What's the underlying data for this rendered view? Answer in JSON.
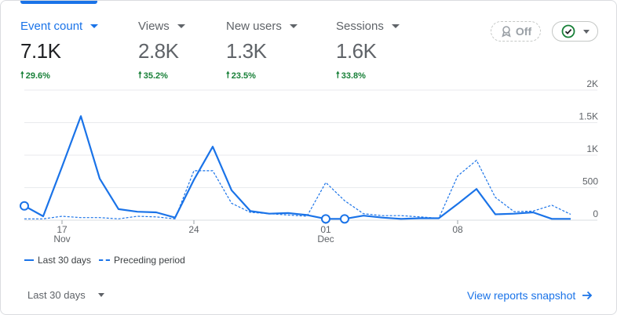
{
  "metrics": [
    {
      "label": "Event count",
      "value": "7.1K",
      "delta": "29.6%"
    },
    {
      "label": "Views",
      "value": "2.8K",
      "delta": "35.2%"
    },
    {
      "label": "New users",
      "value": "1.3K",
      "delta": "23.5%"
    },
    {
      "label": "Sessions",
      "value": "1.6K",
      "delta": "33.8%"
    }
  ],
  "toggle": {
    "label": "Off"
  },
  "legend": {
    "current": "Last 30 days",
    "previous": "Preceding period"
  },
  "footer": {
    "period_label": "Last 30 days",
    "snapshot_link": "View reports snapshot"
  },
  "icons": {
    "up": "arrow-up-icon",
    "badge": "badge-icon",
    "check": "check-circle-icon",
    "arrow": "arrow-right-icon"
  },
  "colors": {
    "accent": "#1a73e8",
    "positive": "#188038",
    "text": "#202124",
    "muted": "#5f6368"
  },
  "chart_data": {
    "type": "line",
    "x": [
      "15 Nov",
      "16 Nov",
      "17 Nov",
      "18 Nov",
      "19 Nov",
      "20 Nov",
      "21 Nov",
      "22 Nov",
      "23 Nov",
      "24 Nov",
      "25 Nov",
      "26 Nov",
      "27 Nov",
      "28 Nov",
      "29 Nov",
      "30 Nov",
      "01 Dec",
      "02 Dec",
      "03 Dec",
      "04 Dec",
      "05 Dec",
      "06 Dec",
      "07 Dec",
      "08 Dec",
      "09 Dec",
      "10 Dec",
      "11 Dec",
      "12 Dec",
      "13 Dec",
      "14 Dec"
    ],
    "x_ticks": [
      {
        "index": 2,
        "day": "17",
        "month": "Nov"
      },
      {
        "index": 9,
        "day": "24",
        "month": ""
      },
      {
        "index": 16,
        "day": "01",
        "month": "Dec"
      },
      {
        "index": 23,
        "day": "08",
        "month": ""
      }
    ],
    "y_ticks": [
      "2K",
      "1.5K",
      "1K",
      "500",
      "0"
    ],
    "ylim": [
      0,
      2000
    ],
    "series": [
      {
        "name": "Last 30 days",
        "values": [
          220,
          60,
          820,
          1600,
          640,
          170,
          130,
          120,
          40,
          620,
          1130,
          460,
          140,
          100,
          110,
          80,
          20,
          20,
          70,
          40,
          20,
          30,
          30,
          250,
          480,
          90,
          100,
          120,
          20,
          20
        ]
      },
      {
        "name": "Preceding period",
        "values": [
          20,
          20,
          60,
          40,
          40,
          20,
          60,
          50,
          20,
          760,
          760,
          260,
          120,
          100,
          80,
          60,
          580,
          300,
          100,
          70,
          70,
          50,
          30,
          680,
          920,
          350,
          130,
          140,
          230,
          90
        ]
      }
    ],
    "markers": [
      0,
      16,
      17
    ],
    "grid": true,
    "legend_position": "bottom-left"
  }
}
